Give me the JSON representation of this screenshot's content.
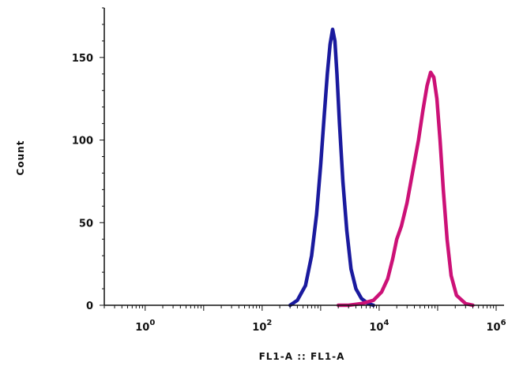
{
  "chart_data": {
    "type": "line",
    "title": "",
    "xlabel": "FL1-A :: FL1-A",
    "ylabel": "Count",
    "x_scale": "log",
    "xlim": [
      0.2,
      1000000
    ],
    "ylim": [
      0,
      180
    ],
    "grid": false,
    "legend": "none",
    "x_ticks": [
      {
        "value": 1,
        "base": "10",
        "exp": "0"
      },
      {
        "value": 100,
        "base": "10",
        "exp": "2"
      },
      {
        "value": 10000,
        "base": "10",
        "exp": "4"
      },
      {
        "value": 1000000,
        "base": "10",
        "exp": "6"
      }
    ],
    "y_ticks": [
      {
        "value": 0,
        "label": "0"
      },
      {
        "value": 50,
        "label": "50"
      },
      {
        "value": 100,
        "label": "100"
      },
      {
        "value": 150,
        "label": "150"
      }
    ],
    "series": [
      {
        "color": "#1a1a9e",
        "points": [
          [
            300,
            0
          ],
          [
            400,
            3
          ],
          [
            550,
            12
          ],
          [
            700,
            30
          ],
          [
            850,
            55
          ],
          [
            1000,
            85
          ],
          [
            1150,
            115
          ],
          [
            1300,
            140
          ],
          [
            1450,
            158
          ],
          [
            1600,
            167
          ],
          [
            1750,
            160
          ],
          [
            1900,
            140
          ],
          [
            2100,
            110
          ],
          [
            2400,
            75
          ],
          [
            2800,
            45
          ],
          [
            3300,
            22
          ],
          [
            4000,
            10
          ],
          [
            5000,
            4
          ],
          [
            6500,
            1
          ],
          [
            8000,
            0
          ]
        ]
      },
      {
        "color": "#cc1177",
        "points": [
          [
            2000,
            0
          ],
          [
            3000,
            0
          ],
          [
            5000,
            1
          ],
          [
            8000,
            3
          ],
          [
            11000,
            8
          ],
          [
            14000,
            16
          ],
          [
            17000,
            28
          ],
          [
            20000,
            40
          ],
          [
            24000,
            48
          ],
          [
            30000,
            62
          ],
          [
            38000,
            82
          ],
          [
            47000,
            100
          ],
          [
            56000,
            118
          ],
          [
            66000,
            133
          ],
          [
            76000,
            141
          ],
          [
            86000,
            138
          ],
          [
            97000,
            125
          ],
          [
            110000,
            100
          ],
          [
            125000,
            70
          ],
          [
            145000,
            40
          ],
          [
            170000,
            18
          ],
          [
            210000,
            6
          ],
          [
            300000,
            1
          ],
          [
            400000,
            0
          ]
        ]
      }
    ]
  }
}
